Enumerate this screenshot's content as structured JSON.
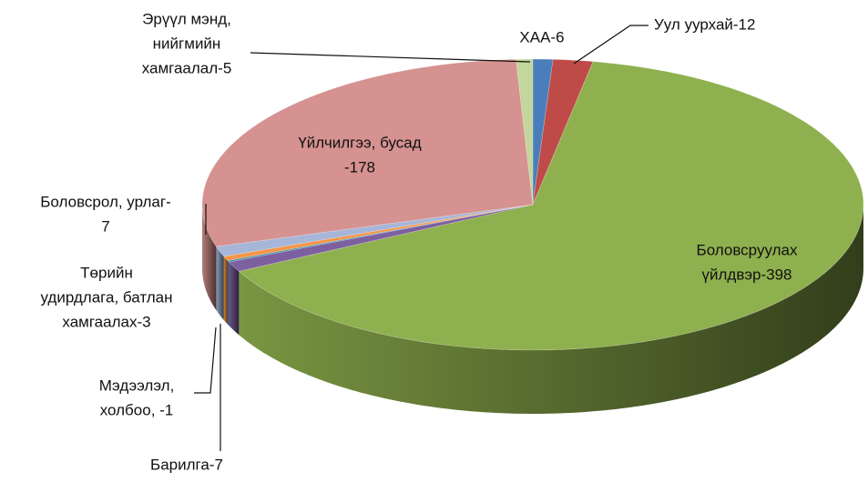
{
  "chart_data": {
    "type": "pie3d",
    "values": [
      6,
      12,
      398,
      7,
      1,
      3,
      7,
      178,
      5
    ],
    "value_labels": [
      [
        "ХАА-6"
      ],
      [
        "Уул уурхай-12"
      ],
      [
        "Боловсруулах",
        "үйлдвэр-398"
      ],
      [
        "Барилга-7"
      ],
      [
        "Мэдээлэл,",
        "холбоо, -1"
      ],
      [
        "Төрийн",
        "удирдлага, батлан",
        "хамгаалах-3"
      ],
      [
        "Боловсрол, урлаг-",
        "7"
      ],
      [
        "Үйлчилгээ, бусад",
        "-178"
      ],
      [
        "Эрүүл мэнд,",
        "нийгмийн",
        "хамгаалал-5"
      ]
    ],
    "colors": [
      "#4a7ebb",
      "#be4b48",
      "#8fb04e",
      "#7d60a0",
      "#3f8ea8",
      "#f79646",
      "#a5b6d9",
      "#d59290",
      "#c3d69b"
    ]
  }
}
